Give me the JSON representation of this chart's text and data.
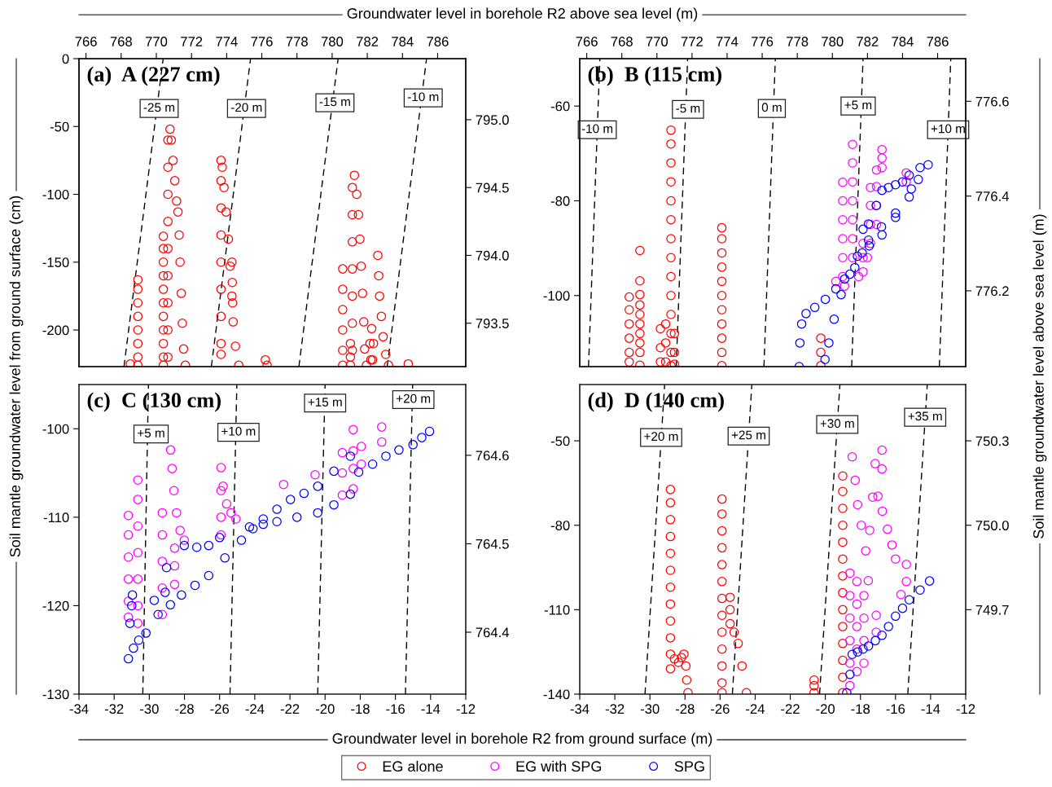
{
  "chart_data": [
    {
      "type": "scatter",
      "title": "(a)  A (227 cm)",
      "ylabel": "Soil mantle groundwater level from ground surface (cm)",
      "x2label": "Groundwater level in borehole R2 above sea level (m)",
      "xlim": [
        -34,
        -12
      ],
      "xticks": [
        -34,
        -32,
        -30,
        -28,
        -26,
        -24,
        -22,
        -20,
        -18,
        -16,
        -14,
        -12
      ],
      "ylim": [
        -227,
        0
      ],
      "yticks": [
        0,
        -50,
        -100,
        -150,
        -200
      ],
      "x2lim": [
        765.6,
        787.6
      ],
      "x2ticks": [
        766,
        768,
        770,
        772,
        774,
        776,
        778,
        780,
        782,
        784,
        786
      ],
      "y2lim": [
        793.18,
        795.45
      ],
      "y2ticks": [
        {
          "value": 795,
          "label": "795.0"
        },
        794.5,
        {
          "value": 794,
          "label": "794.0"
        },
        793.5
      ],
      "tick_labels": "y",
      "marker": "circle",
      "grid": false,
      "legend": "bottom",
      "annotations": [
        {
          "text": "-25 m",
          "x": -29.44,
          "y": -36.7
        },
        {
          "text": "-20 m",
          "x": -24.47,
          "y": -36.7
        },
        {
          "text": "-15 m",
          "x": -19.44,
          "y": -32.5
        },
        {
          "text": "-10 m",
          "x": -14.42,
          "y": -28.9
        }
      ],
      "series": [
        {
          "name": "EG alone",
          "color": "#ff0000",
          "x": [
            -31.08,
            -30.65,
            -30.65,
            -30.65,
            -30.65,
            -30.65,
            -30.65,
            -30.65,
            -30.65,
            -29.2,
            -29.2,
            -29.2,
            -29.2,
            -29.2,
            -29.2,
            -29.2,
            -29.2,
            -29.2,
            -29.2,
            -29.2,
            -28.94,
            -28.94,
            -28.94,
            -28.94,
            -28.94,
            -28.94,
            -28.94,
            -28.94,
            -28.94,
            -28.82,
            -28.75,
            -28.65,
            -28.55,
            -28.45,
            -28.37,
            -28.3,
            -28.25,
            -28.18,
            -28.12,
            -28.05,
            -27.95,
            -25.92,
            -25.92,
            -25.92,
            -25.92,
            -25.92,
            -25.92,
            -25.92,
            -25.92,
            -25.92,
            -25.85,
            -25.75,
            -25.63,
            -25.5,
            -25.4,
            -25.3,
            -25.23,
            -25.1,
            -24.91,
            -25.3,
            -25.28,
            -25.26,
            -23.4,
            -23.3,
            -19.0,
            -19.0,
            -19.0,
            -19.0,
            -19.0,
            -19.0,
            -18.56,
            -18.56,
            -18.56,
            -18.45,
            -18.45,
            -18.45,
            -18.45,
            -18.45,
            -18.45,
            -18.45,
            -18.33,
            -18.2,
            -18.1,
            -18.02,
            -17.95,
            -17.87,
            -17.8,
            -17.75,
            -17.65,
            -17.35,
            -17.45,
            -17.25,
            -17.4,
            -17.3,
            -17.0,
            -16.95,
            -16.9,
            -16.8,
            -16.7,
            -16.55,
            -16.39,
            -15.27
          ],
          "values": [
            -225,
            -163,
            -170,
            -180,
            -190,
            -200,
            -210,
            -220,
            -226,
            -131,
            -140,
            -150,
            -160,
            -170,
            -180,
            -190,
            -200,
            -210,
            -220,
            -226,
            -60,
            -80,
            -100,
            -120,
            -140,
            -160,
            -180,
            -200,
            -220,
            -52,
            -60,
            -75,
            -90,
            -105,
            -113,
            -130,
            -150,
            -173,
            -195,
            -214,
            -226,
            -75,
            -90,
            -110,
            -130,
            -150,
            -170,
            -190,
            -210,
            -218,
            -80,
            -95,
            -113,
            -133,
            -153,
            -175,
            -194,
            -212,
            -226,
            -150,
            -165,
            -180,
            -222,
            -226,
            -155,
            -170,
            -185,
            -200,
            -215,
            -226,
            -210,
            -220,
            -226,
            -95,
            -115,
            -135,
            -155,
            -175,
            -195,
            -215,
            -86,
            -100,
            -115,
            -133,
            -153,
            -173,
            -194,
            -214,
            -226,
            -199,
            -210,
            -210,
            -222,
            -222,
            -145,
            -160,
            -175,
            -190,
            -205,
            -218,
            -226,
            -225
          ]
        },
        {
          "type": "line",
          "color": "#000000",
          "line_style": "dashed",
          "marker": "none",
          "x": [
            -31.44,
            -29.21
          ],
          "values": [
            -227,
            0
          ]
        },
        {
          "type": "line",
          "color": "#000000",
          "line_style": "dashed",
          "marker": "none",
          "x": [
            -26.47,
            -24.24
          ],
          "values": [
            -227,
            0
          ]
        },
        {
          "type": "line",
          "color": "#000000",
          "line_style": "dashed",
          "marker": "none",
          "x": [
            -21.49,
            -19.26
          ],
          "values": [
            -227,
            0
          ]
        },
        {
          "type": "line",
          "color": "#000000",
          "line_style": "dashed",
          "marker": "none",
          "x": [
            -16.47,
            -14.23
          ],
          "values": [
            -227,
            0
          ]
        }
      ]
    },
    {
      "type": "scatter",
      "title": "(b)  B (115 cm)",
      "y2label": "Soil mantle groundwater level above sea level (m)",
      "xlim": [
        -34,
        -12
      ],
      "xticks": [
        -34,
        -32,
        -30,
        -28,
        -26,
        -24,
        -22,
        -20,
        -18,
        -16,
        -14,
        -12
      ],
      "ylim": [
        -115,
        -50
      ],
      "yticks": [
        -60,
        -80,
        -100
      ],
      "x2lim": [
        765.6,
        787.6
      ],
      "x2ticks": [
        766,
        768,
        770,
        772,
        774,
        776,
        778,
        780,
        782,
        784,
        786
      ],
      "y2lim": [
        776.04,
        776.69
      ],
      "y2ticks": [
        776.6,
        776.4,
        776.2
      ],
      "tick_labels": "y",
      "marker": "circle",
      "grid": false,
      "legend": "bottom",
      "annotations": [
        {
          "text": "-10 m",
          "x": -33.0,
          "y": -65.0
        },
        {
          "text": "-5 m",
          "x": -27.83,
          "y": -60.7
        },
        {
          "text": "0 m",
          "x": -23.05,
          "y": -60.5
        },
        {
          "text": "+5 m",
          "x": -18.13,
          "y": -60.0
        },
        {
          "text": "+10 m",
          "x": -13.0,
          "y": -65.0
        }
      ],
      "series": [
        {
          "name": "EG alone",
          "color": "#ff0000",
          "x": [
            -31.18,
            -31.18,
            -31.18,
            -31.18,
            -31.18,
            -31.18,
            -30.57,
            -30.57,
            -30.57,
            -30.57,
            -30.57,
            -30.57,
            -30.57,
            -30.57,
            -30.57,
            -30.57,
            -29.4,
            -29.4,
            -29.4,
            -29.1,
            -29.1,
            -29.1,
            -28.6,
            -28.6,
            -28.6,
            -28.8,
            -28.8,
            -28.8,
            -28.8,
            -28.8,
            -28.8,
            -28.8,
            -28.8,
            -28.8,
            -28.8,
            -28.8,
            -28.8,
            -28.8,
            -28.8,
            -25.9,
            -25.9,
            -25.9,
            -25.9,
            -25.9,
            -25.9,
            -25.9,
            -25.9,
            -25.9,
            -25.9,
            -25.9,
            -20.26,
            -20.26,
            -20.26
          ],
          "values": [
            -100.3,
            -103,
            -106,
            -109,
            -112,
            -114,
            -90.5,
            -96.9,
            -99.8,
            -102,
            -104,
            -106,
            -108,
            -110,
            -112,
            -114.7,
            -107,
            -111,
            -114,
            -106,
            -110,
            -114,
            -108,
            -112,
            -114.5,
            -65.1,
            -68,
            -72,
            -76,
            -80,
            -84,
            -88,
            -92,
            -96,
            -100,
            -104,
            -108,
            -112,
            -114.8,
            -85.7,
            -88,
            -91,
            -94,
            -97,
            -100,
            -103,
            -106,
            -109,
            -112,
            -114.8,
            -109,
            -112,
            -114.8
          ]
        },
        {
          "name": "EG with SPG",
          "color": "#ff00ff",
          "x": [
            -19.01,
            -19.01,
            -19.01,
            -19.01,
            -19.01,
            -19.01,
            -18.45,
            -18.45,
            -18.45,
            -18.45,
            -18.45,
            -18.45,
            -18.45,
            -17.85,
            -17.85,
            -17.85,
            -17.43,
            -17.43,
            -17.43,
            -17.43,
            -17.08,
            -17.08,
            -17.08,
            -17.08,
            -16.77,
            -16.77,
            -16.77,
            -15.39,
            -15.39,
            -19.4,
            -18.9,
            -18.1,
            -17.6
          ],
          "values": [
            -76.1,
            -80,
            -84,
            -88,
            -92,
            -96,
            -68.1,
            -72,
            -76,
            -80,
            -84,
            -88,
            -92,
            -89,
            -92,
            -95,
            -77.2,
            -81,
            -85,
            -89,
            -73.5,
            -77,
            -81,
            -85,
            -69.2,
            -71,
            -73,
            -74.1,
            -76,
            -97,
            -98,
            -96,
            -92
          ]
        },
        {
          "name": "SPG",
          "color": "#0000ff",
          "x": [
            -21.49,
            -21.45,
            -21.35,
            -21.1,
            -20.6,
            -20.0,
            -19.4,
            -18.9,
            -18.32,
            -17.9,
            -17.54,
            -16.8,
            -16.0,
            -15.1,
            -14.14,
            -14.6,
            -15.22,
            -15.6,
            -16.0,
            -16.4,
            -16.77,
            -17.1,
            -17.54,
            -17.85,
            -20.02,
            -19.8,
            -19.5,
            -19.1,
            -18.6,
            -18.17,
            -17.5,
            -16.77,
            -16.0,
            -15.22,
            -14.7
          ],
          "values": [
            -115,
            -110,
            -106,
            -103.8,
            -102.5,
            -100.8,
            -98.6,
            -96.5,
            -94.1,
            -91.0,
            -88.3,
            -85.5,
            -82.6,
            -77.5,
            -72.4,
            -73.0,
            -74.6,
            -76.0,
            -76.6,
            -77.2,
            -77.8,
            -81,
            -84.9,
            -86,
            -113.5,
            -110,
            -105,
            -99.8,
            -95.5,
            -91.7,
            -89.5,
            -87.2,
            -83.5,
            -79.2,
            -75.5
          ]
        },
        {
          "type": "line",
          "color": "#000000",
          "line_style": "dashed",
          "marker": "none",
          "x": [
            -33.5,
            -32.85
          ],
          "values": [
            -115,
            -50
          ]
        },
        {
          "type": "line",
          "color": "#000000",
          "line_style": "dashed",
          "marker": "none",
          "x": [
            -28.5,
            -27.85
          ],
          "values": [
            -115,
            -50
          ]
        },
        {
          "type": "line",
          "color": "#000000",
          "line_style": "dashed",
          "marker": "none",
          "x": [
            -23.5,
            -22.85
          ],
          "values": [
            -115,
            -50
          ]
        },
        {
          "type": "line",
          "color": "#000000",
          "line_style": "dashed",
          "marker": "none",
          "x": [
            -18.5,
            -17.85
          ],
          "values": [
            -115,
            -50
          ]
        },
        {
          "type": "line",
          "color": "#000000",
          "line_style": "dashed",
          "marker": "none",
          "x": [
            -13.5,
            -12.85
          ],
          "values": [
            -115,
            -50
          ]
        }
      ]
    },
    {
      "type": "scatter",
      "title": "(c)  C (130 cm)",
      "xlabel": "Groundwater level in borehole R2 from ground surface (m)",
      "xlim": [
        -34,
        -12
      ],
      "xticks": [
        -34,
        -32,
        -30,
        -28,
        -26,
        -24,
        -22,
        -20,
        -18,
        -16,
        -14,
        -12
      ],
      "ylim": [
        -130,
        -95
      ],
      "yticks": [
        -100,
        -110,
        -120,
        -130
      ],
      "y2lim": [
        764.33,
        764.68
      ],
      "y2ticks": [
        764.6,
        764.5,
        764.4
      ],
      "marker": "circle",
      "grid": false,
      "legend": "bottom",
      "annotations": [
        {
          "text": "+5 m",
          "x": -29.9,
          "y": -100.6
        },
        {
          "text": "+10 m",
          "x": -24.93,
          "y": -100.4
        },
        {
          "text": "+15 m",
          "x": -20.0,
          "y": -97.1
        },
        {
          "text": "+20 m",
          "x": -14.98,
          "y": -96.7
        }
      ],
      "series": [
        {
          "name": "EG with SPG",
          "color": "#ff00ff",
          "x": [
            -31.19,
            -31.19,
            -31.19,
            -31.19,
            -31.19,
            -31.19,
            -30.65,
            -30.65,
            -30.65,
            -30.65,
            -30.65,
            -30.65,
            -30.65,
            -29.26,
            -29.26,
            -29.26,
            -29.26,
            -29.26,
            -28.79,
            -28.7,
            -28.6,
            -28.45,
            -28.25,
            -28.01,
            -28.56,
            -28.56,
            -28.56,
            -25.92,
            -25.8,
            -25.6,
            -25.35,
            -25.07,
            -25.92,
            -25.92,
            -25.92,
            -18.4,
            -18.4,
            -18.4,
            -18.4,
            -19.02,
            -19.02,
            -19.02,
            -16.78,
            -16.78,
            -17.94,
            -17.94,
            -22.36,
            -20.57
          ],
          "values": [
            -109.8,
            -112,
            -114.5,
            -117,
            -119.5,
            -121.3,
            -105.8,
            -108,
            -111,
            -114,
            -117,
            -120,
            -122,
            -109.5,
            -112,
            -115,
            -118,
            -121,
            -102.4,
            -104.5,
            -107,
            -109.5,
            -111.5,
            -112.6,
            -113.5,
            -115.5,
            -117.6,
            -104.4,
            -106.5,
            -108.5,
            -109.5,
            -110.2,
            -107,
            -110,
            -112,
            -100.1,
            -102.5,
            -104.5,
            -106.8,
            -102.7,
            -105,
            -107.5,
            -99.8,
            -101.5,
            -102.0,
            -104,
            -106.3,
            -105.2
          ]
        },
        {
          "name": "SPG",
          "color": "#0000ff",
          "x": [
            -31.19,
            -30.9,
            -30.6,
            -30.19,
            -29.5,
            -28.8,
            -28.17,
            -27.4,
            -26.62,
            -25.7,
            -24.76,
            -24.1,
            -23.52,
            -22.74,
            -21.97,
            -21.2,
            -20.42,
            -19.5,
            -18.56,
            -24.3,
            -23.52,
            -22.74,
            -21.6,
            -20.42,
            -19.5,
            -18.56,
            -18.09,
            -17.3,
            -16.54,
            -15.8,
            -15.0,
            -14.5,
            -14.06,
            -28.01,
            -27.3,
            -26.62,
            -26.0,
            -30.96,
            -29.72,
            -29.1,
            -29.02,
            -31.1,
            -31.0
          ],
          "values": [
            -126.0,
            -124.8,
            -123.9,
            -123.1,
            -121.0,
            -119.9,
            -118.8,
            -117.7,
            -116.6,
            -114.6,
            -112.6,
            -111.3,
            -110.2,
            -109.1,
            -108.0,
            -107.3,
            -106.5,
            -104.8,
            -103.1,
            -111.1,
            -110.8,
            -110.5,
            -110.0,
            -109.5,
            -108.6,
            -107.4,
            -104.9,
            -104.0,
            -103.1,
            -102.4,
            -101.8,
            -101.0,
            -100.3,
            -113.2,
            -113.4,
            -113.2,
            -112.3,
            -118.8,
            -119.4,
            -118.5,
            -115.7,
            -122,
            -120
          ]
        },
        {
          "type": "line",
          "color": "#000000",
          "line_style": "dashed",
          "marker": "none",
          "x": [
            -30.37,
            -30.05
          ],
          "values": [
            -130,
            -95
          ]
        },
        {
          "type": "line",
          "color": "#000000",
          "line_style": "dashed",
          "marker": "none",
          "x": [
            -25.41,
            -25.02
          ],
          "values": [
            -130,
            -95
          ]
        },
        {
          "type": "line",
          "color": "#000000",
          "line_style": "dashed",
          "marker": "none",
          "x": [
            -20.42,
            -20.0
          ],
          "values": [
            -130,
            -95
          ]
        },
        {
          "type": "line",
          "color": "#000000",
          "line_style": "dashed",
          "marker": "none",
          "x": [
            -15.43,
            -15.02
          ],
          "values": [
            -130,
            -95
          ]
        }
      ]
    },
    {
      "type": "scatter",
      "title": "(d)  D (140 cm)",
      "xlim": [
        -34,
        -12
      ],
      "xticks": [
        -34,
        -32,
        -30,
        -28,
        -26,
        -24,
        -22,
        -20,
        -18,
        -16,
        -14,
        -12
      ],
      "ylim": [
        -140,
        -30
      ],
      "yticks": [
        -50,
        -80,
        -110,
        -140
      ],
      "y2lim": [
        749.4,
        750.5
      ],
      "y2ticks": [
        750.3,
        {
          "value": 750,
          "label": "750.0"
        },
        749.7
      ],
      "marker": "circle",
      "grid": false,
      "legend": "bottom",
      "annotations": [
        {
          "text": "+20 m",
          "x": -29.36,
          "y": -48.8
        },
        {
          "text": "+25 m",
          "x": -24.37,
          "y": -48.3
        },
        {
          "text": "+30 m",
          "x": -19.32,
          "y": -44.2
        },
        {
          "text": "+35 m",
          "x": -14.31,
          "y": -41.6
        }
      ],
      "series": [
        {
          "name": "EG alone",
          "color": "#ff0000",
          "x": [
            -28.83,
            -28.83,
            -28.83,
            -28.83,
            -28.83,
            -28.83,
            -28.83,
            -28.83,
            -28.83,
            -28.83,
            -28.83,
            -28.83,
            -28.6,
            -28.37,
            -28.2,
            -28.06,
            -27.95,
            -27.9,
            -27.83,
            -25.89,
            -25.89,
            -25.89,
            -25.89,
            -25.89,
            -25.89,
            -25.89,
            -25.89,
            -25.89,
            -25.89,
            -25.89,
            -25.89,
            -25.89,
            -25.43,
            -25.43,
            -25.43,
            -25.2,
            -24.97,
            -24.75,
            -24.5,
            -20.64,
            -20.64,
            -20.64,
            -19.01,
            -19.01,
            -19.01,
            -19.01,
            -19.01,
            -19.01,
            -19.01,
            -19.01,
            -19.01,
            -19.01,
            -19.01,
            -19.01,
            -19.01,
            -19.01
          ],
          "values": [
            -67.3,
            -72,
            -78,
            -84,
            -90,
            -96,
            -102,
            -108,
            -114,
            -120,
            -125.8,
            -131,
            -127.5,
            -128.7,
            -127,
            -125.8,
            -130,
            -135,
            -139.5,
            -70.7,
            -76,
            -82,
            -88,
            -94,
            -100,
            -106,
            -112,
            -118,
            -124,
            -130,
            -136,
            -139.5,
            -105.6,
            -110,
            -115,
            -118,
            -122,
            -130,
            -139.5,
            -135,
            -137,
            -139.5,
            -62.5,
            -68,
            -74,
            -80,
            -86,
            -92,
            -98,
            -104,
            -110,
            -116,
            -122,
            -128,
            -134,
            -139.5
          ]
        },
        {
          "name": "EG with SPG",
          "color": "#ff00ff",
          "x": [
            -18.47,
            -18.3,
            -18.16,
            -17.95,
            -17.7,
            -17.55,
            -17.47,
            -17.3,
            -17.16,
            -17.0,
            -16.75,
            -16.46,
            -16.2,
            -16.0,
            -15.69,
            -15.38,
            -15.38,
            -16.77,
            -16.77,
            -18.6,
            -18.6,
            -18.6,
            -18.6,
            -18.6,
            -18.6,
            -18.2,
            -18.2,
            -18.2,
            -18.2,
            -18.2,
            -17.8,
            -17.8,
            -17.8,
            -17.8,
            -17.1,
            -17.1
          ],
          "values": [
            -55.7,
            -64,
            -72.7,
            -80,
            -89.1,
            -99.7,
            -81.8,
            -70,
            -58.1,
            -69.7,
            -75,
            -81.4,
            -87,
            -92.0,
            -104.6,
            -93.9,
            -100,
            -53.3,
            -60,
            -97,
            -105,
            -113,
            -121,
            -129,
            -137,
            -100,
            -108,
            -116,
            -124,
            -132,
            -105,
            -113,
            -121,
            -129,
            -112,
            -118
          ]
        },
        {
          "name": "SPG",
          "color": "#0000ff",
          "x": [
            -18.78,
            -18.6,
            -18.47,
            -18.16,
            -17.85,
            -17.54,
            -17.15,
            -16.77,
            -16.4,
            -16.0,
            -15.6,
            -15.22,
            -14.6,
            -14.06
          ],
          "values": [
            -139.5,
            -133,
            -125.9,
            -125,
            -124,
            -122.9,
            -121,
            -119.1,
            -116,
            -112.3,
            -109.5,
            -106.5,
            -103,
            -99.8
          ]
        },
        {
          "type": "line",
          "color": "#000000",
          "line_style": "dashed",
          "marker": "none",
          "x": [
            -30.28,
            -29.16
          ],
          "values": [
            -140,
            -30
          ]
        },
        {
          "type": "line",
          "color": "#000000",
          "line_style": "dashed",
          "marker": "none",
          "x": [
            -25.3,
            -24.19
          ],
          "values": [
            -140,
            -30
          ]
        },
        {
          "type": "line",
          "color": "#000000",
          "line_style": "dashed",
          "marker": "none",
          "x": [
            -20.33,
            -19.17
          ],
          "values": [
            -140,
            -30
          ]
        },
        {
          "type": "line",
          "color": "#000000",
          "line_style": "dashed",
          "marker": "none",
          "x": [
            -15.3,
            -14.19
          ],
          "values": [
            -140,
            -30
          ]
        }
      ]
    }
  ]
}
